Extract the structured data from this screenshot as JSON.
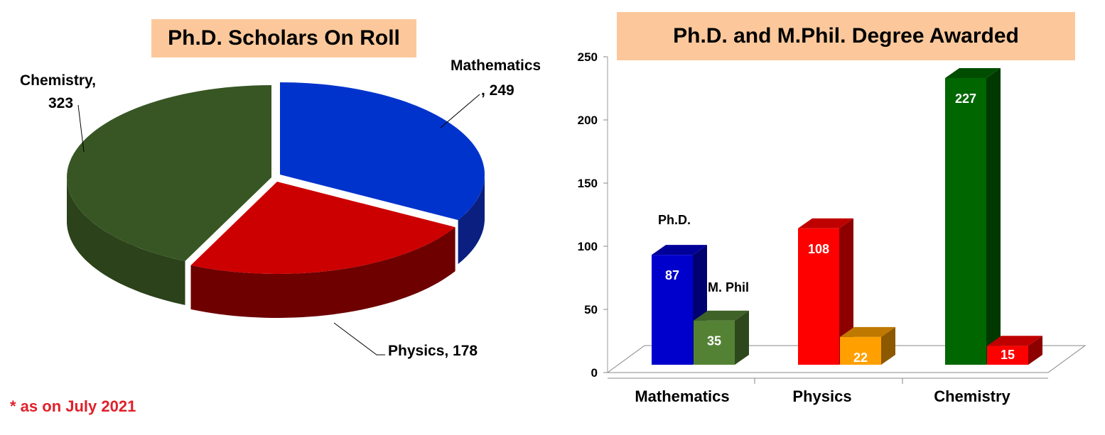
{
  "footnote": "* as on July 2021",
  "chart_data": [
    {
      "type": "pie",
      "title": "Ph.D. Scholars On Roll",
      "labels": [
        "Mathematics",
        "Physics",
        "Chemistry"
      ],
      "values": [
        249,
        178,
        323
      ],
      "label_text": [
        [
          "Mathematics",
          ", 249"
        ],
        [
          "Physics, 178"
        ],
        [
          "Chemistry,",
          "323"
        ]
      ],
      "colors": [
        "#0033cc",
        "#cc0000",
        "#375623"
      ],
      "side_colors": [
        "#0a1f80",
        "#6e0000",
        "#2b421a"
      ]
    },
    {
      "type": "bar",
      "title": "Ph.D. and M.Phil. Degree Awarded",
      "categories": [
        "Mathematics",
        "Physics",
        "Chemistry"
      ],
      "series": [
        {
          "name": "Ph.D.",
          "values": [
            87,
            108,
            227
          ],
          "colors": [
            "#0000cc",
            "#ff0000",
            "#006600"
          ]
        },
        {
          "name": "M. Phil",
          "values": [
            35,
            22,
            15
          ],
          "colors": [
            "#548235",
            "#ffa000",
            "#ff0000"
          ]
        }
      ],
      "ylim": [
        0,
        250
      ],
      "yticks": [
        0,
        50,
        100,
        150,
        200,
        250
      ],
      "legend": "inline labels above first category"
    }
  ]
}
